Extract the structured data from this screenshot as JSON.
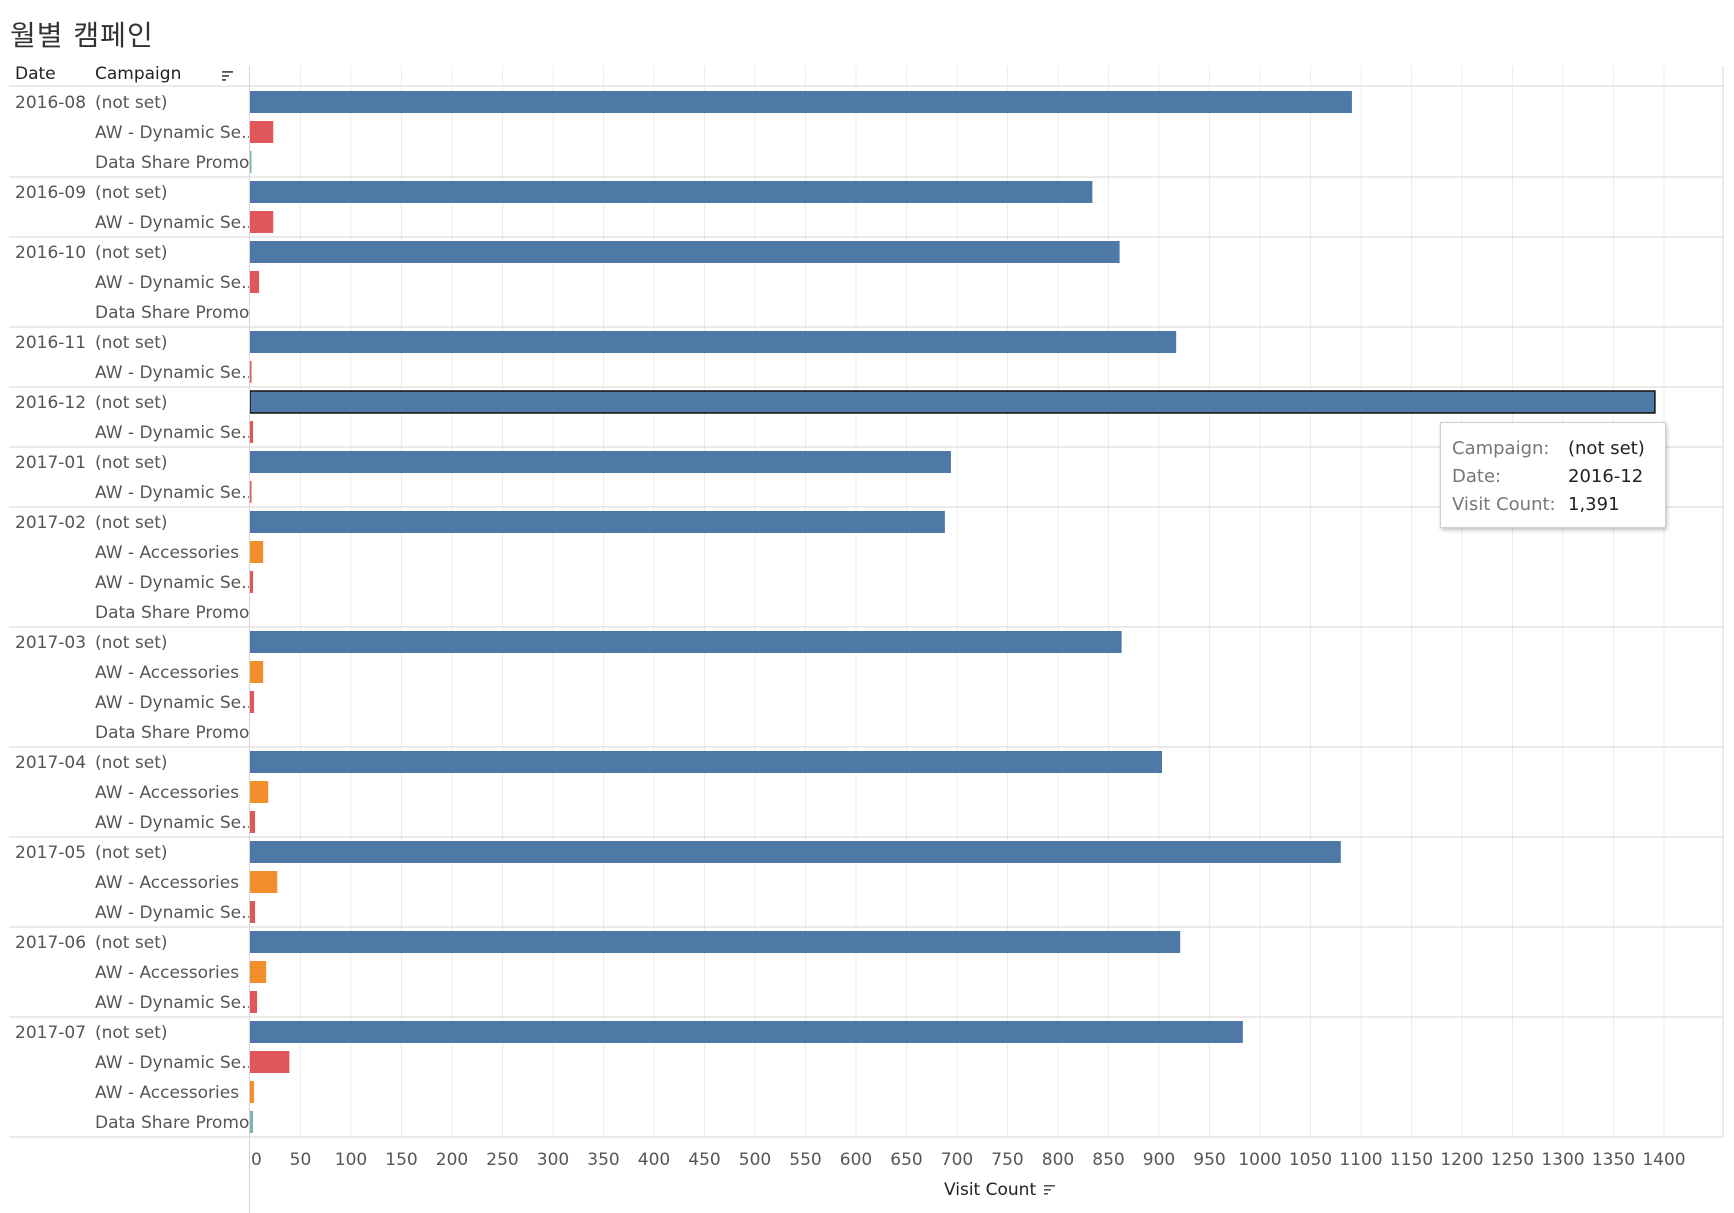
{
  "title": "월별 캠페인",
  "headers": {
    "date": "Date",
    "campaign": "Campaign"
  },
  "colors": {
    "(not set)": "#4e79a7",
    "AW - Dynamic Se..": "#e15759",
    "AW - Accessories": "#f28e2b",
    "Data Share Promo": "#76b7b2",
    "selected_outline": "#111111",
    "grid": "#ececec",
    "divider": "#d4d4d4"
  },
  "tooltip": {
    "rows": [
      {
        "key": "Campaign:",
        "value": "(not set)"
      },
      {
        "key": "Date:",
        "value": "2016-12"
      },
      {
        "key": "Visit Count:",
        "value": "1,391"
      }
    ]
  },
  "chart_data": {
    "type": "bar",
    "orientation": "horizontal",
    "xlabel": "Visit Count",
    "xlim": [
      0,
      1400
    ],
    "xticks": [
      0,
      50,
      100,
      150,
      200,
      250,
      300,
      350,
      400,
      450,
      500,
      550,
      600,
      650,
      700,
      750,
      800,
      850,
      900,
      950,
      1000,
      1050,
      1100,
      1150,
      1200,
      1250,
      1300,
      1350,
      1400
    ],
    "grid": true,
    "selected": {
      "date": "2016-12",
      "campaign": "(not set)"
    },
    "groups": [
      {
        "date": "2016-08",
        "rows": [
          {
            "campaign": "(not set)",
            "value": 1091
          },
          {
            "campaign": "AW - Dynamic Se..",
            "value": 23
          },
          {
            "campaign": "Data Share Promo",
            "value": 1
          }
        ]
      },
      {
        "date": "2016-09",
        "rows": [
          {
            "campaign": "(not set)",
            "value": 834
          },
          {
            "campaign": "AW - Dynamic Se..",
            "value": 23
          }
        ]
      },
      {
        "date": "2016-10",
        "rows": [
          {
            "campaign": "(not set)",
            "value": 861
          },
          {
            "campaign": "AW - Dynamic Se..",
            "value": 9
          },
          {
            "campaign": "Data Share Promo",
            "value": 0
          }
        ]
      },
      {
        "date": "2016-11",
        "rows": [
          {
            "campaign": "(not set)",
            "value": 917
          },
          {
            "campaign": "AW - Dynamic Se..",
            "value": 1
          }
        ]
      },
      {
        "date": "2016-12",
        "rows": [
          {
            "campaign": "(not set)",
            "value": 1391
          },
          {
            "campaign": "AW - Dynamic Se..",
            "value": 3
          }
        ]
      },
      {
        "date": "2017-01",
        "rows": [
          {
            "campaign": "(not set)",
            "value": 694
          },
          {
            "campaign": "AW - Dynamic Se..",
            "value": 1
          }
        ]
      },
      {
        "date": "2017-02",
        "rows": [
          {
            "campaign": "(not set)",
            "value": 688
          },
          {
            "campaign": "AW - Accessories",
            "value": 13
          },
          {
            "campaign": "AW - Dynamic Se..",
            "value": 3
          },
          {
            "campaign": "Data Share Promo",
            "value": 0
          }
        ]
      },
      {
        "date": "2017-03",
        "rows": [
          {
            "campaign": "(not set)",
            "value": 863
          },
          {
            "campaign": "AW - Accessories",
            "value": 13
          },
          {
            "campaign": "AW - Dynamic Se..",
            "value": 4
          },
          {
            "campaign": "Data Share Promo",
            "value": 0
          }
        ]
      },
      {
        "date": "2017-04",
        "rows": [
          {
            "campaign": "(not set)",
            "value": 903
          },
          {
            "campaign": "AW - Accessories",
            "value": 18
          },
          {
            "campaign": "AW - Dynamic Se..",
            "value": 5
          }
        ]
      },
      {
        "date": "2017-05",
        "rows": [
          {
            "campaign": "(not set)",
            "value": 1080
          },
          {
            "campaign": "AW - Accessories",
            "value": 27
          },
          {
            "campaign": "AW - Dynamic Se..",
            "value": 5
          }
        ]
      },
      {
        "date": "2017-06",
        "rows": [
          {
            "campaign": "(not set)",
            "value": 921
          },
          {
            "campaign": "AW - Accessories",
            "value": 16
          },
          {
            "campaign": "AW - Dynamic Se..",
            "value": 7
          }
        ]
      },
      {
        "date": "2017-07",
        "rows": [
          {
            "campaign": "(not set)",
            "value": 983
          },
          {
            "campaign": "AW - Dynamic Se..",
            "value": 39
          },
          {
            "campaign": "AW - Accessories",
            "value": 4
          },
          {
            "campaign": "Data Share Promo",
            "value": 3
          }
        ]
      }
    ]
  }
}
